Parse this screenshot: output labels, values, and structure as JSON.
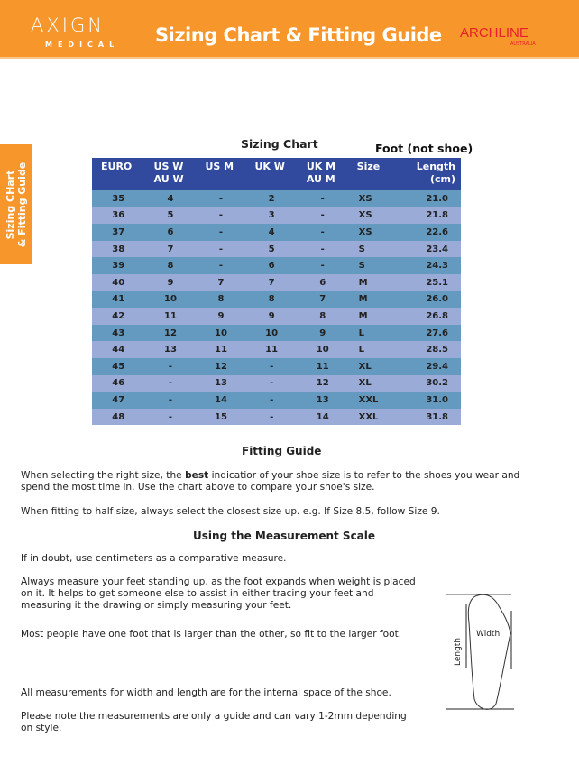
{
  "header": {
    "logo_main": "AXIGN",
    "logo_sub": "MEDICAL",
    "title": "Sizing Chart & Fitting Guide",
    "brand": "ARCHLINE",
    "brand_sub": "AUSTRALIA",
    "color": "#F7962B"
  },
  "side_tab": {
    "line1": "Sizing CHart",
    "line2": "& Fitting Guide"
  },
  "chart": {
    "title": "Sizing Chart",
    "note": "Foot (not shoe)",
    "headers": [
      [
        "EURO",
        ""
      ],
      [
        "US W",
        "AU W"
      ],
      [
        "US M",
        ""
      ],
      [
        "UK W",
        ""
      ],
      [
        "UK M",
        "AU M"
      ],
      [
        "Size",
        ""
      ],
      [
        "Length",
        "(cm)"
      ]
    ],
    "rows": [
      [
        "35",
        "4",
        "-",
        "2",
        "-",
        "XS",
        "21.0"
      ],
      [
        "36",
        "5",
        "-",
        "3",
        "-",
        "XS",
        "21.8"
      ],
      [
        "37",
        "6",
        "-",
        "4",
        "-",
        "XS",
        "22.6"
      ],
      [
        "38",
        "7",
        "-",
        "5",
        "-",
        "S",
        "23.4"
      ],
      [
        "39",
        "8",
        "-",
        "6",
        "-",
        "S",
        "24.3"
      ],
      [
        "40",
        "9",
        "7",
        "7",
        "6",
        "M",
        "25.1"
      ],
      [
        "41",
        "10",
        "8",
        "8",
        "7",
        "M",
        "26.0"
      ],
      [
        "42",
        "11",
        "9",
        "9",
        "8",
        "M",
        "26.8"
      ],
      [
        "43",
        "12",
        "10",
        "10",
        "9",
        "L",
        "27.6"
      ],
      [
        "44",
        "13",
        "11",
        "11",
        "10",
        "L",
        "28.5"
      ],
      [
        "45",
        "-",
        "12",
        "-",
        "11",
        "XL",
        "29.4"
      ],
      [
        "46",
        "-",
        "13",
        "-",
        "12",
        "XL",
        "30.2"
      ],
      [
        "47",
        "-",
        "14",
        "-",
        "13",
        "XXL",
        "31.0"
      ],
      [
        "48",
        "-",
        "15",
        "-",
        "14",
        "XXL",
        "31.8"
      ]
    ]
  },
  "fitting": {
    "title": "Fitting Guide",
    "p1a": "When selecting the right size, the ",
    "p1b": "best",
    "p1c": " indicatior of your shoe size is to refer to the shoes you wear and spend the most time in. Use the chart above to compare your shoe's size.",
    "p2": "When fitting to half size, always select the closest size up. e.g. If Size 8.5, follow Size 9."
  },
  "measure": {
    "title": "Using the Measurement Scale",
    "p1": "If in doubt, use centimeters as a comparative measure.",
    "p2": "Always measure your feet standing up, as the foot expands when weight is placed on it. It helps to get someone else to assist in either tracing your feet and measuring it the drawing or simply measuring your feet.",
    "p3": "Most people have one foot that is larger than the other, so fit to the larger foot.",
    "p4": "All measurements for width and length are for the internal space of the shoe.",
    "p5": "Please note the measurements are only a guide and can vary 1-2mm depending on style."
  },
  "diagram": {
    "length": "Length",
    "width": "Width"
  }
}
